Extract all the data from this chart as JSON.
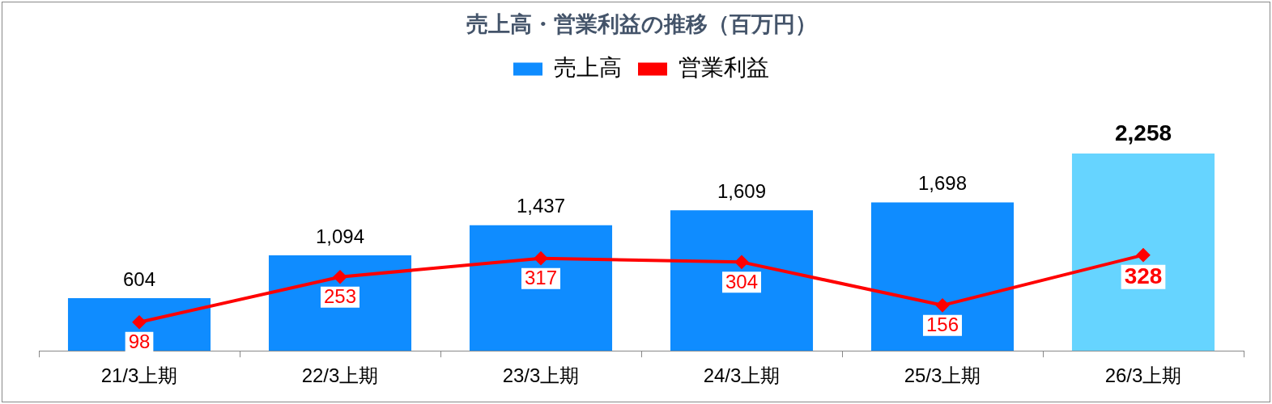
{
  "chart_data": {
    "type": "bar",
    "title": "売上高・営業利益の推移（百万円）",
    "categories": [
      "21/3上期",
      "22/3上期",
      "23/3上期",
      "24/3上期",
      "25/3上期",
      "26/3上期"
    ],
    "series": [
      {
        "name": "売上高",
        "colors": [
          "#0f8cff",
          "#0f8cff",
          "#0f8cff",
          "#0f8cff",
          "#0f8cff",
          "#66d4ff"
        ],
        "values": [
          604,
          1094,
          1437,
          1609,
          1698,
          2258
        ],
        "value_labels": [
          "604",
          "1,094",
          "1,437",
          "1,609",
          "1,698",
          "2,258"
        ]
      },
      {
        "name": "営業利益",
        "type": "line",
        "axis": "y2",
        "color": "#ff0000",
        "values": [
          98,
          253,
          317,
          304,
          156,
          328
        ],
        "value_labels": [
          "98",
          "253",
          "317",
          "304",
          "156",
          "328"
        ]
      }
    ],
    "tick_labels": "x",
    "grid": false,
    "legend": "top",
    "marker": "diamond",
    "line_style": "solid"
  }
}
